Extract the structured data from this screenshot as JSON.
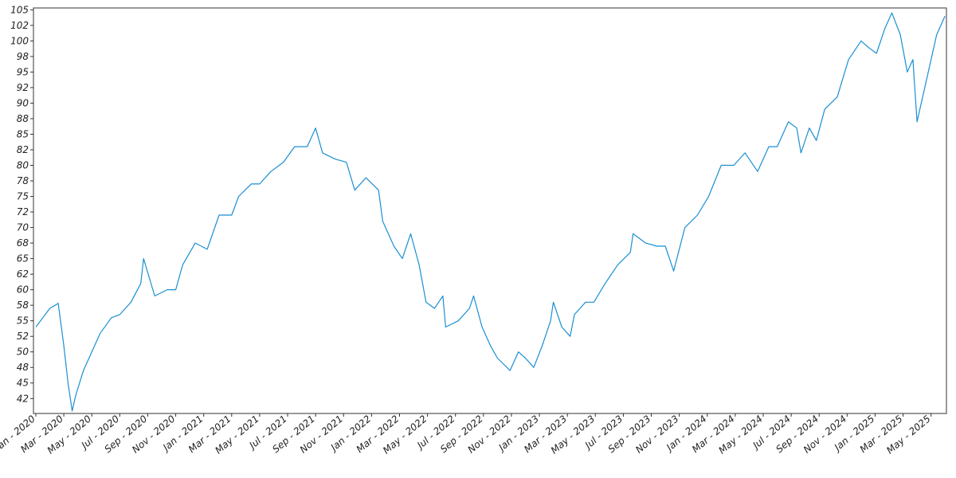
{
  "chart_data": {
    "type": "line",
    "color": "#1a8fd3",
    "x": [
      0,
      0.5,
      1,
      1.6,
      2,
      2.3,
      2.6,
      2.85,
      3.4,
      4,
      4.6,
      5.4,
      6,
      6.8,
      7.5,
      7.7,
      8.5,
      9.4,
      10,
      10.5,
      11.4,
      12.25,
      13.1,
      14,
      14.5,
      15.4,
      16,
      16.8,
      17.7,
      18.5,
      19.4,
      20,
      20.5,
      21.4,
      22.2,
      22.8,
      23.6,
      24.5,
      24.8,
      25.6,
      26.2,
      26.8,
      27.4,
      27.9,
      28.5,
      29.1,
      29.3,
      30.2,
      31,
      31.3,
      31.9,
      32.5,
      33,
      33.9,
      34.5,
      35,
      35.6,
      36.2,
      36.8,
      37,
      37.6,
      38.2,
      38.5,
      39.3,
      39.9,
      40.7,
      41.6,
      42.5,
      42.7,
      43.6,
      44.4,
      45,
      45.6,
      46.4,
      47.3,
      48.1,
      49,
      49.9,
      50.7,
      51.6,
      52.4,
      53,
      53.8,
      54.4,
      54.7,
      55.3,
      55.8,
      56.4,
      57.3,
      58.1,
      59,
      59.5,
      60.1,
      60.7,
      61.2,
      61.8,
      62.3,
      62.7,
      63,
      63.3,
      63.8,
      64.4,
      65
    ],
    "values": [
      54,
      55.5,
      57,
      57.8,
      51,
      45,
      40.5,
      43,
      47,
      50,
      53,
      55.5,
      56,
      58,
      61,
      65,
      59,
      60,
      60,
      64,
      67.5,
      66.5,
      72,
      72,
      75,
      77,
      77,
      79,
      80.5,
      83,
      83,
      86,
      82,
      81,
      80.5,
      76,
      78,
      76,
      71,
      67,
      65,
      69,
      64,
      58,
      57,
      59,
      54,
      55,
      57,
      59,
      54,
      51,
      49,
      47,
      50,
      49,
      47.5,
      51,
      55,
      58,
      54,
      52.5,
      56,
      58,
      58,
      61,
      64,
      66,
      69,
      67.5,
      67,
      67,
      63,
      70,
      72,
      75,
      80,
      80,
      82,
      79,
      83,
      83,
      87,
      86,
      82,
      86,
      84,
      89,
      91,
      97,
      100,
      99,
      98,
      102,
      104.5,
      101,
      95,
      97,
      87,
      90,
      95,
      101,
      104
    ],
    "xlim": [
      -0.17,
      65.1
    ],
    "xticks": [
      {
        "value": 0,
        "label": "Jan - 2020"
      },
      {
        "value": 2,
        "label": "Mar - 2020"
      },
      {
        "value": 4,
        "label": "May - 2020"
      },
      {
        "value": 6,
        "label": "Jul - 2020"
      },
      {
        "value": 8,
        "label": "Sep - 2020"
      },
      {
        "value": 10,
        "label": "Nov - 2020"
      },
      {
        "value": 12,
        "label": "Jan - 2021"
      },
      {
        "value": 14,
        "label": "Mar - 2021"
      },
      {
        "value": 16,
        "label": "May - 2021"
      },
      {
        "value": 18,
        "label": "Jul - 2021"
      },
      {
        "value": 20,
        "label": "Sep - 2021"
      },
      {
        "value": 22,
        "label": "Nov - 2021"
      },
      {
        "value": 24,
        "label": "Jan - 2022"
      },
      {
        "value": 26,
        "label": "Mar - 2022"
      },
      {
        "value": 28,
        "label": "May - 2022"
      },
      {
        "value": 30,
        "label": "Jul - 2022"
      },
      {
        "value": 32,
        "label": "Sep - 2022"
      },
      {
        "value": 34,
        "label": "Nov - 2022"
      },
      {
        "value": 36,
        "label": "Jan - 2023"
      },
      {
        "value": 38,
        "label": "Mar - 2023"
      },
      {
        "value": 40,
        "label": "May - 2023"
      },
      {
        "value": 42,
        "label": "Jul - 2023"
      },
      {
        "value": 44,
        "label": "Sep - 2023"
      },
      {
        "value": 46,
        "label": "Nov - 2023"
      },
      {
        "value": 48,
        "label": "Jan - 2024"
      },
      {
        "value": 50,
        "label": "Mar - 2024"
      },
      {
        "value": 52,
        "label": "May - 2024"
      },
      {
        "value": 54,
        "label": "Jul - 2024"
      },
      {
        "value": 56,
        "label": "Sep - 2024"
      },
      {
        "value": 58,
        "label": "Nov - 2024"
      },
      {
        "value": 60,
        "label": "Jan - 2025"
      },
      {
        "value": 62,
        "label": "Mar - 2025"
      },
      {
        "value": 64,
        "label": "May - 2025"
      }
    ],
    "ylim": [
      40.1,
      105.3
    ],
    "yticks": [
      {
        "value": 42.5,
        "label": "42"
      },
      45,
      {
        "value": 47.5,
        "label": "48"
      },
      50,
      {
        "value": 52.5,
        "label": "52"
      },
      55,
      {
        "value": 57.5,
        "label": "58"
      },
      60,
      {
        "value": 62.5,
        "label": "62"
      },
      65,
      {
        "value": 67.5,
        "label": "68"
      },
      70,
      {
        "value": 72.5,
        "label": "72"
      },
      75,
      {
        "value": 77.5,
        "label": "78"
      },
      80,
      {
        "value": 82.5,
        "label": "82"
      },
      85,
      {
        "value": 87.5,
        "label": "88"
      },
      90,
      {
        "value": 92.5,
        "label": "92"
      },
      95,
      {
        "value": 97.5,
        "label": "98"
      },
      100,
      {
        "value": 102.5,
        "label": "102"
      },
      105
    ]
  }
}
